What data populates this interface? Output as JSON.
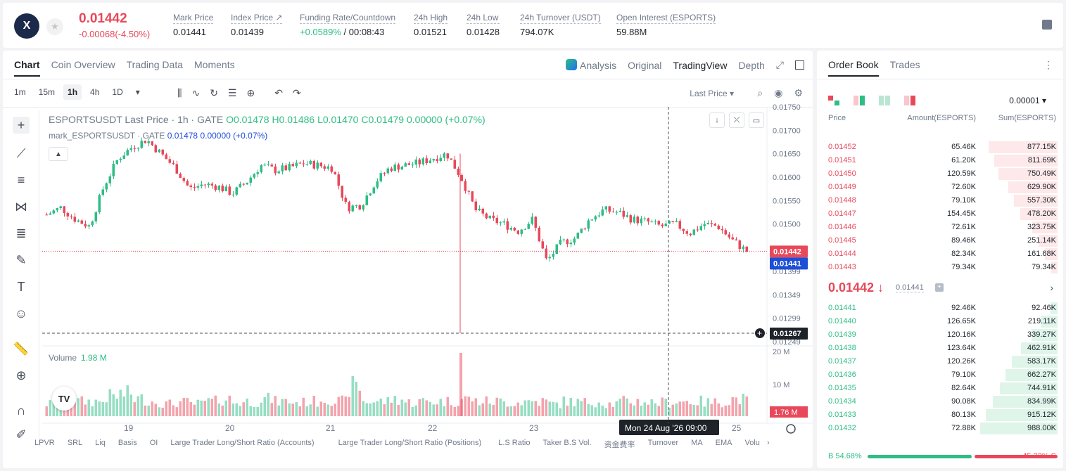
{
  "header": {
    "logo_text": "X",
    "last_price": "0.01442",
    "change": "-0.00068(-4.50%)",
    "stats": [
      {
        "label": "Mark Price",
        "value": "0.01441",
        "color": "normal"
      },
      {
        "label": "Index Price ↗",
        "value": "0.01439",
        "color": "normal"
      },
      {
        "label": "Funding Rate/Countdown",
        "value": "+0.0589%",
        "value2": " / 00:08:43",
        "color": "green"
      },
      {
        "label": "24h High",
        "value": "0.01521",
        "color": "normal"
      },
      {
        "label": "24h Low",
        "value": "0.01428",
        "color": "normal"
      },
      {
        "label": "24h Turnover (USDT)",
        "value": "794.07K",
        "color": "normal"
      },
      {
        "label": "Open Interest (ESPORTS)",
        "value": "59.88M",
        "color": "normal"
      }
    ]
  },
  "chart_tabs": [
    "Chart",
    "Coin Overview",
    "Trading Data",
    "Moments"
  ],
  "view_tabs": {
    "analysis": "Analysis",
    "original": "Original",
    "tradingview": "TradingView",
    "depth": "Depth"
  },
  "timeframes": [
    "1m",
    "15m",
    "1h",
    "4h",
    "1D"
  ],
  "active_timeframe": "1h",
  "last_price_select": "Last Price",
  "legend": {
    "symbol": "ESPORTSUSDT Last Price · 1h · GATE",
    "o": "O0.01478",
    "h": "H0.01486",
    "l": "L0.01470",
    "c": "C0.01479",
    "chg": "0.00000 (+0.07%)",
    "mark_name": "mark_ESPORTSUSDT · GATE",
    "mark_val": "0.01478",
    "mark_chg": "0.00000 (+0.07%)"
  },
  "volume": {
    "label": "Volume",
    "value": "1.98 M"
  },
  "tv_logo": "TV",
  "chart_data": {
    "type": "candlestick",
    "y_ticks": [
      "0.01750",
      "0.01700",
      "0.01650",
      "0.01600",
      "0.01550",
      "0.01500",
      "0.01399",
      "0.01349",
      "0.01299",
      "0.01249"
    ],
    "y_range": [
      0.0124,
      0.0175
    ],
    "x_ticks": [
      "19",
      "20",
      "21",
      "22",
      "23",
      "25"
    ],
    "price_tags": {
      "last": "0.01442",
      "mark": "0.01441",
      "low": "0.01267"
    },
    "crosshair_label": "Mon 24 Aug '26   09:00",
    "vol_ticks": [
      "20 M",
      "10 M"
    ],
    "vol_tag": "1.76 M",
    "series": [
      {
        "name": "price",
        "anchors": [
          0.0152,
          0.01535,
          0.0151,
          0.01495,
          0.0158,
          0.0164,
          0.01665,
          0.0168,
          0.0165,
          0.0162,
          0.01575,
          0.01585,
          0.0158,
          0.01565,
          0.0159,
          0.01625,
          0.01615,
          0.0162,
          0.0163,
          0.01625,
          0.0162,
          0.01535,
          0.0154,
          0.0159,
          0.0162,
          0.01625,
          0.0163,
          0.0164,
          0.0165,
          0.016,
          0.0153,
          0.0151,
          0.015,
          0.01485,
          0.0151,
          0.0142,
          0.0146,
          0.0147,
          0.0151,
          0.0153,
          0.01525,
          0.0151,
          0.01505,
          0.01495,
          0.015,
          0.0148,
          0.015,
          0.01495,
          0.01465,
          0.01442
        ]
      },
      {
        "name": "volume_rel",
        "values": [
          0.25,
          0.35,
          0.3,
          0.3,
          0.4,
          0.45,
          0.35,
          0.3,
          0.25,
          0.28,
          0.25,
          0.3,
          0.35,
          0.28,
          0.3,
          0.35,
          0.3,
          0.28,
          0.3,
          0.35,
          0.3,
          0.6,
          0.3,
          0.3,
          0.35,
          0.28,
          0.3,
          0.3,
          0.3,
          0.35,
          0.3,
          0.3,
          0.28,
          0.3,
          0.3,
          0.25,
          0.3,
          0.28,
          0.3,
          0.25,
          0.3,
          0.3,
          0.28,
          0.28,
          0.3,
          0.3,
          0.28,
          0.3,
          0.35,
          0.3
        ]
      }
    ]
  },
  "indicators": [
    "LPVR",
    "SRL",
    "Liq",
    "Basis",
    "OI",
    "Large Trader Long/Short Ratio (Accounts)",
    "Large Trader Long/Short Ratio (Positions)",
    "L.S Ratio",
    "Taker B.S Vol.",
    "资金费率",
    "Turnover",
    "MA",
    "EMA",
    "Volu"
  ],
  "orderbook": {
    "tabs": [
      "Order Book",
      "Trades"
    ],
    "tick_size": "0.00001",
    "headers": {
      "price": "Price",
      "amount": "Amount(ESPORTS)",
      "sum": "Sum(ESPORTS)"
    },
    "asks": [
      {
        "price": "0.01452",
        "amount": "65.46K",
        "sum": "877.15K",
        "depth": 0.89
      },
      {
        "price": "0.01451",
        "amount": "61.20K",
        "sum": "811.69K",
        "depth": 0.82
      },
      {
        "price": "0.01450",
        "amount": "120.59K",
        "sum": "750.49K",
        "depth": 0.76
      },
      {
        "price": "0.01449",
        "amount": "72.60K",
        "sum": "629.90K",
        "depth": 0.64
      },
      {
        "price": "0.01448",
        "amount": "79.10K",
        "sum": "557.30K",
        "depth": 0.56
      },
      {
        "price": "0.01447",
        "amount": "154.45K",
        "sum": "478.20K",
        "depth": 0.48
      },
      {
        "price": "0.01446",
        "amount": "72.61K",
        "sum": "323.75K",
        "depth": 0.33
      },
      {
        "price": "0.01445",
        "amount": "89.46K",
        "sum": "251.14K",
        "depth": 0.25
      },
      {
        "price": "0.01444",
        "amount": "82.34K",
        "sum": "161.68K",
        "depth": 0.16
      },
      {
        "price": "0.01443",
        "amount": "79.34K",
        "sum": "79.34K",
        "depth": 0.08
      }
    ],
    "mid_price": "0.01442 ↓",
    "mid_mark": "0.01441",
    "bids": [
      {
        "price": "0.01441",
        "amount": "92.46K",
        "sum": "92.46K",
        "depth": 0.09
      },
      {
        "price": "0.01440",
        "amount": "126.65K",
        "sum": "219.11K",
        "depth": 0.22
      },
      {
        "price": "0.01439",
        "amount": "120.16K",
        "sum": "339.27K",
        "depth": 0.34
      },
      {
        "price": "0.01438",
        "amount": "123.64K",
        "sum": "462.91K",
        "depth": 0.47
      },
      {
        "price": "0.01437",
        "amount": "120.26K",
        "sum": "583.17K",
        "depth": 0.59
      },
      {
        "price": "0.01436",
        "amount": "79.10K",
        "sum": "662.27K",
        "depth": 0.67
      },
      {
        "price": "0.01435",
        "amount": "82.64K",
        "sum": "744.91K",
        "depth": 0.75
      },
      {
        "price": "0.01434",
        "amount": "90.08K",
        "sum": "834.99K",
        "depth": 0.84
      },
      {
        "price": "0.01433",
        "amount": "80.13K",
        "sum": "915.12K",
        "depth": 0.93
      },
      {
        "price": "0.01432",
        "amount": "72.88K",
        "sum": "988.00K",
        "depth": 1.0
      }
    ],
    "buy_ratio_label": "B 54.68%",
    "sell_ratio_label": "45.32% S",
    "buy_ratio": 0.5468
  },
  "colors": {
    "up": "#2ebd85",
    "down": "#e8485a",
    "accent_blue": "#1d4ed8"
  }
}
